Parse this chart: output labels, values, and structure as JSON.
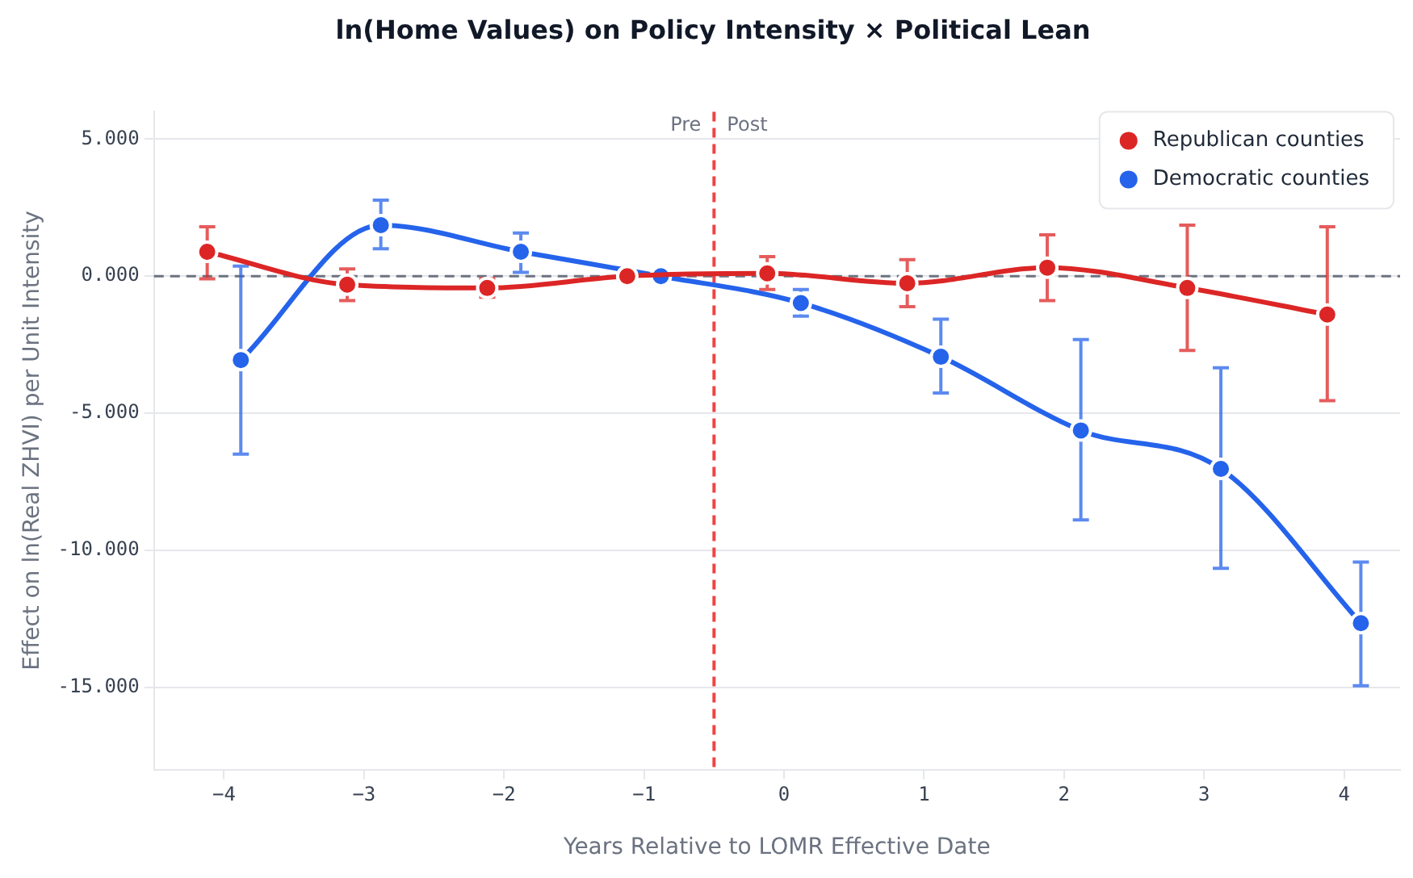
{
  "chart_data": {
    "type": "line",
    "title": "ln(Home Values) on Policy Intensity × Political Lean",
    "xlabel": "Years Relative to LOMR Effective Date",
    "ylabel": "Effect on ln(Real ZHVI) per Unit Intensity",
    "series": [
      {
        "name": "Republican counties",
        "color": "#dc2626",
        "x": [
          -4.12,
          -3.12,
          -2.12,
          -1.12,
          -0.12,
          0.88,
          1.88,
          2.88,
          3.88
        ],
        "values": [
          0.89,
          -0.31,
          -0.43,
          0,
          0.1,
          -0.26,
          0.31,
          -0.43,
          -1.4
        ],
        "errors": [
          [
            -0.1,
            1.8
          ],
          [
            -0.89,
            0.26
          ],
          [
            -0.77,
            -0.09
          ],
          null,
          [
            -0.49,
            0.71
          ],
          [
            -1.11,
            0.6
          ],
          [
            -0.89,
            1.51
          ],
          [
            -2.71,
            1.86
          ],
          [
            -4.54,
            1.8
          ]
        ]
      },
      {
        "name": "Democratic counties",
        "color": "#2563eb",
        "x": [
          -3.88,
          -2.88,
          -1.88,
          -0.88,
          0.12,
          1.12,
          2.12,
          3.12,
          4.12
        ],
        "values": [
          -3.06,
          1.86,
          0.89,
          0,
          -0.98,
          -2.94,
          -5.63,
          -7.03,
          -12.66
        ],
        "errors": [
          [
            -6.49,
            0.37
          ],
          [
            1.0,
            2.77
          ],
          [
            0.14,
            1.57
          ],
          null,
          [
            -1.46,
            -0.49
          ],
          [
            -4.26,
            -1.57
          ],
          [
            -8.89,
            -2.31
          ],
          [
            -10.66,
            -3.34
          ],
          [
            -14.94,
            -10.43
          ]
        ]
      }
    ],
    "xlim": [
      -4.5,
      4.4
    ],
    "xticks": [
      {
        "value": -4,
        "label": "−4"
      },
      {
        "value": -3,
        "label": "−3"
      },
      {
        "value": -2,
        "label": "−2"
      },
      {
        "value": -1,
        "label": "−1"
      },
      0,
      1,
      2,
      3,
      4
    ],
    "ylim": [
      -18,
      6
    ],
    "yticks": [
      {
        "value": -15,
        "label": "-15.000"
      },
      {
        "value": -10,
        "label": "-10.000"
      },
      {
        "value": -5,
        "label": "-5.000"
      },
      {
        "value": 0,
        "label": "0.000"
      },
      {
        "value": 5,
        "label": "5.000"
      }
    ],
    "ref_lines": [
      {
        "axis": "y",
        "value": 0,
        "color": "#6b7280",
        "line_style": "dashed"
      },
      {
        "axis": "x",
        "value": -0.5,
        "color": "#ef4444",
        "line_style": "dashed"
      }
    ],
    "annotations": [
      {
        "text": "Pre",
        "x": -0.5,
        "y": 5.5
      },
      {
        "text": "Post",
        "x": -0.5,
        "y": 5.5
      }
    ],
    "grid": "y",
    "legend": "top right",
    "marker": "circle",
    "line_style": "solid"
  }
}
